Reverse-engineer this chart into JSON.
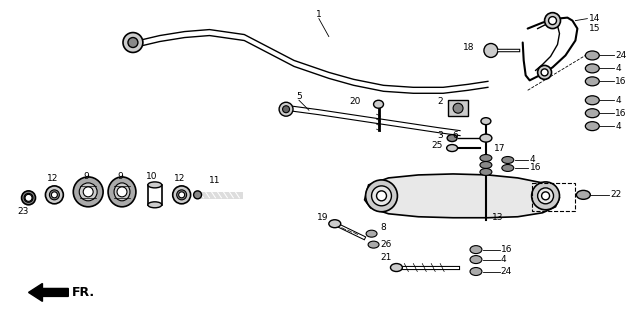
{
  "bg_color": "#ffffff",
  "line_color": "#000000",
  "fig_width": 6.3,
  "fig_height": 3.2,
  "dpi": 100,
  "fr_text": "FR."
}
